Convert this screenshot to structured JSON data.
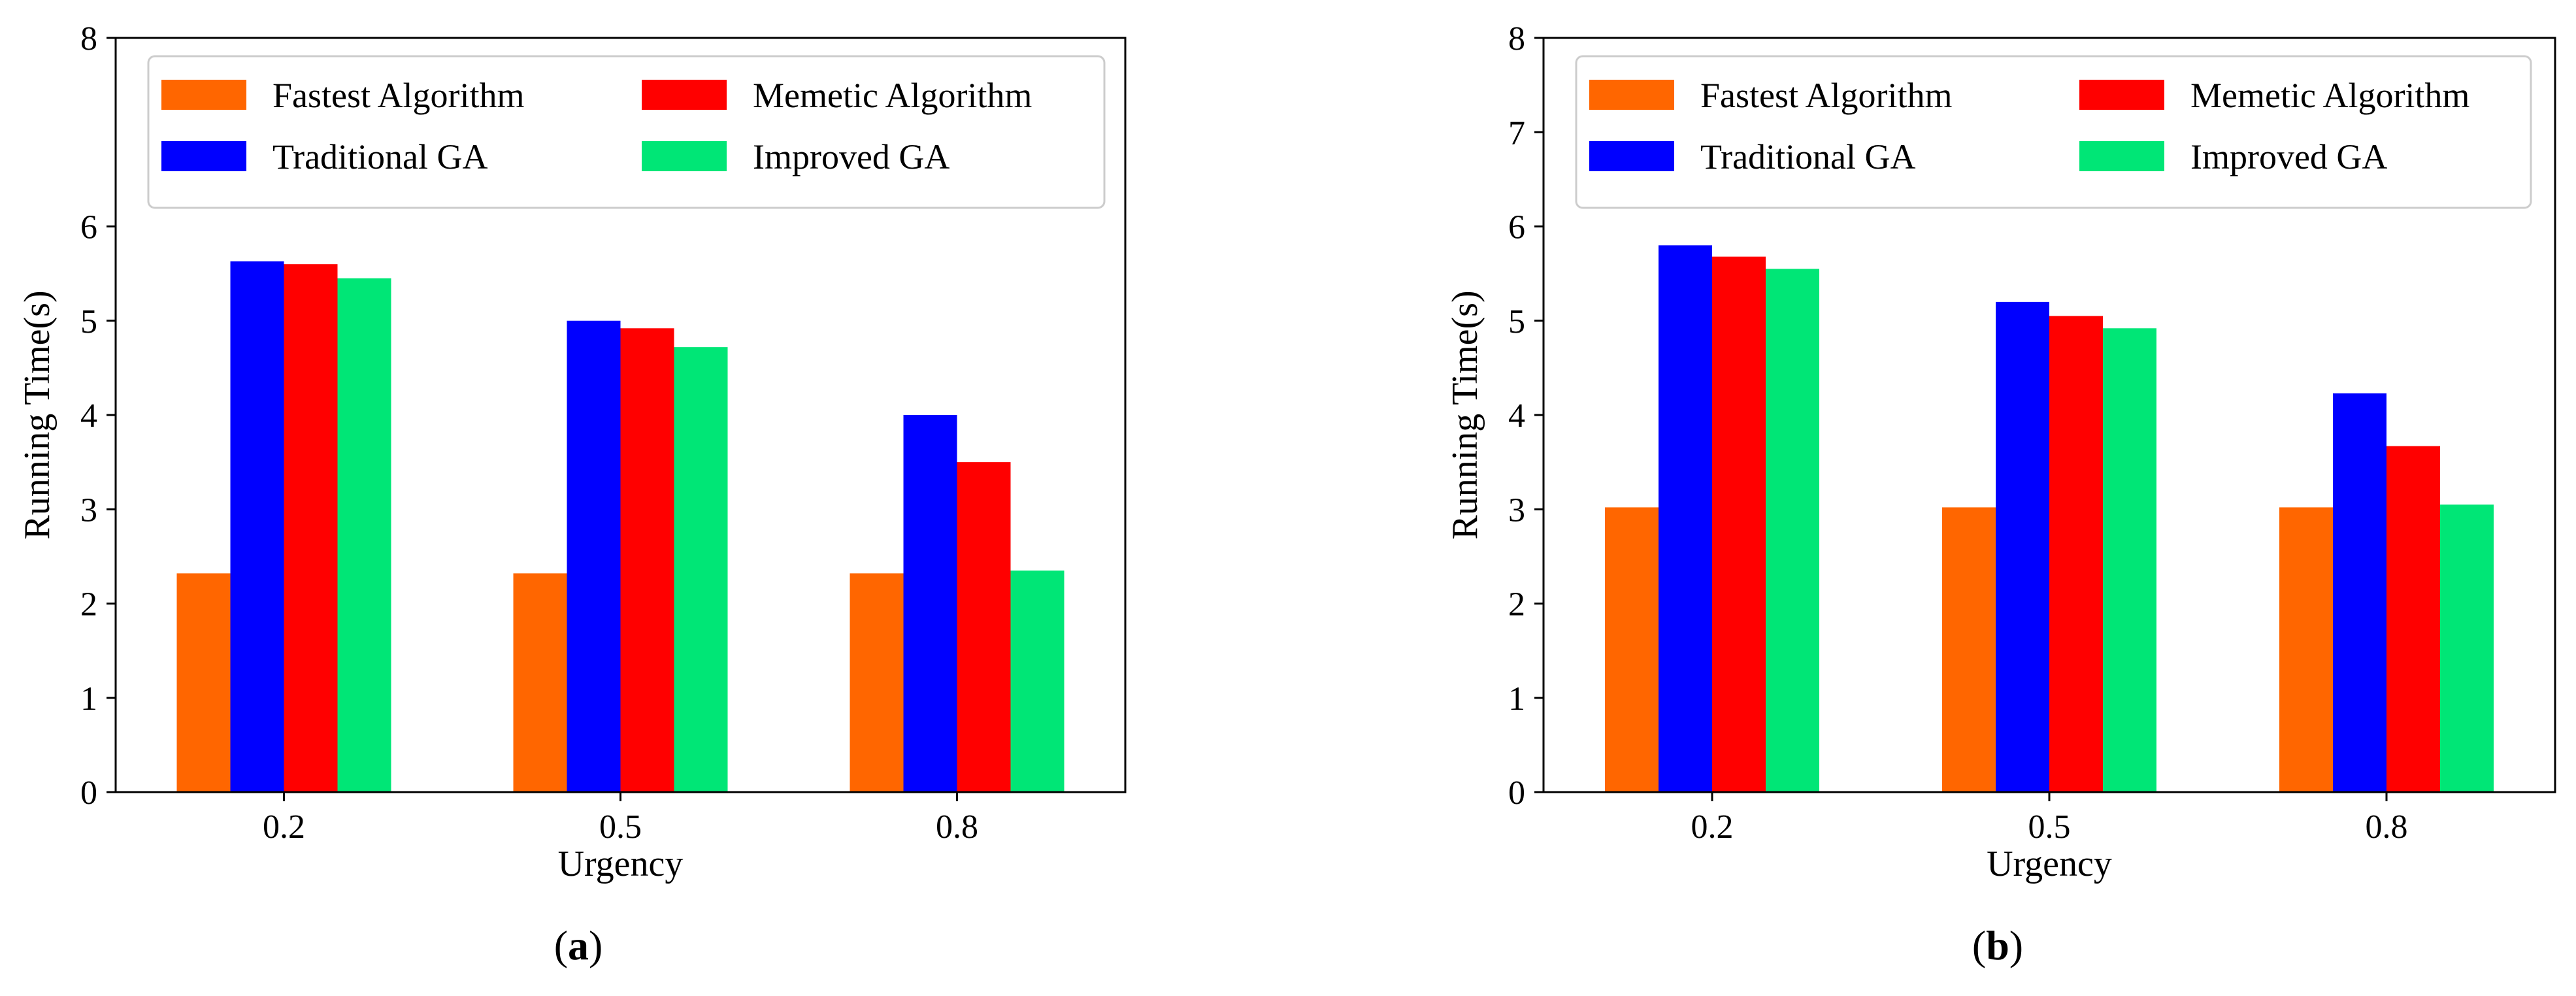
{
  "chart_data": [
    {
      "panel": "a",
      "type": "bar",
      "caption": "(a)",
      "caption_open": "(",
      "caption_letter": "a",
      "caption_close": ")",
      "categories": [
        "0.2",
        "0.5",
        "0.8"
      ],
      "xlabel": "Urgency",
      "ylabel": "Running Time(s)",
      "ylim": [
        0,
        8
      ],
      "yticks": [
        "0",
        "1",
        "2",
        "3",
        "4",
        "5",
        "6",
        "8"
      ],
      "legend_position": "top",
      "series": [
        {
          "name": "Fastest Algorithm",
          "color": "#ff6600",
          "values": [
            2.32,
            2.32,
            2.32
          ]
        },
        {
          "name": "Traditional GA",
          "color": "#0000ff",
          "values": [
            5.63,
            5.0,
            4.0
          ]
        },
        {
          "name": "Memetic Algorithm",
          "color": "#ff0000",
          "values": [
            5.6,
            4.92,
            3.5
          ]
        },
        {
          "name": "Improved GA",
          "color": "#00e676",
          "values": [
            5.45,
            4.72,
            2.35
          ]
        }
      ]
    },
    {
      "panel": "b",
      "type": "bar",
      "caption": "(b)",
      "caption_open": "(",
      "caption_letter": "b",
      "caption_close": ")",
      "categories": [
        "0.2",
        "0.5",
        "0.8"
      ],
      "xlabel": "Urgency",
      "ylabel": "Running Time(s)",
      "ylim": [
        0,
        8
      ],
      "yticks": [
        "0",
        "1",
        "2",
        "3",
        "4",
        "5",
        "6",
        "7",
        "8"
      ],
      "legend_position": "top",
      "series": [
        {
          "name": "Fastest Algorithm",
          "color": "#ff6600",
          "values": [
            3.02,
            3.02,
            3.02
          ]
        },
        {
          "name": "Traditional GA",
          "color": "#0000ff",
          "values": [
            5.8,
            5.2,
            4.23
          ]
        },
        {
          "name": "Memetic Algorithm",
          "color": "#ff0000",
          "values": [
            5.68,
            5.05,
            3.67
          ]
        },
        {
          "name": "Improved GA",
          "color": "#00e676",
          "values": [
            5.55,
            4.92,
            3.05
          ]
        }
      ]
    }
  ]
}
